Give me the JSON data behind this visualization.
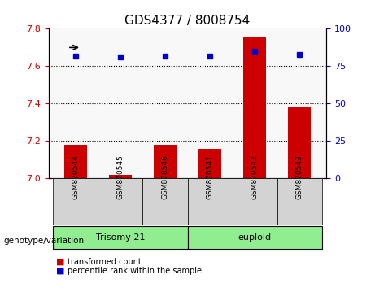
{
  "title": "GDS4377 / 8008754",
  "samples": [
    "GSM870544",
    "GSM870545",
    "GSM870546",
    "GSM870541",
    "GSM870542",
    "GSM870543"
  ],
  "red_values": [
    7.18,
    7.02,
    7.18,
    7.16,
    7.76,
    7.38
  ],
  "blue_values": [
    82,
    81,
    82,
    82,
    85,
    83
  ],
  "ylim_left": [
    7.0,
    7.8
  ],
  "ylim_right": [
    0,
    100
  ],
  "yticks_left": [
    7.0,
    7.2,
    7.4,
    7.6,
    7.8
  ],
  "yticks_right": [
    0,
    25,
    50,
    75,
    100
  ],
  "groups": [
    {
      "label": "Trisomy 21",
      "indices": [
        0,
        1,
        2
      ],
      "color": "#90EE90"
    },
    {
      "label": "euploid",
      "indices": [
        3,
        4,
        5
      ],
      "color": "#90EE90"
    }
  ],
  "group_separator": 2.5,
  "bar_color": "#CC0000",
  "dot_color": "#0000CC",
  "bar_width": 0.5,
  "grid_color": "black",
  "bg_plot": "#f0f0f0",
  "left_tick_color": "#CC0000",
  "right_tick_color": "#0000CC",
  "legend_items": [
    {
      "color": "#CC0000",
      "label": "transformed count"
    },
    {
      "color": "#0000CC",
      "label": "percentile rank within the sample"
    }
  ],
  "genotype_label": "genotype/variation"
}
